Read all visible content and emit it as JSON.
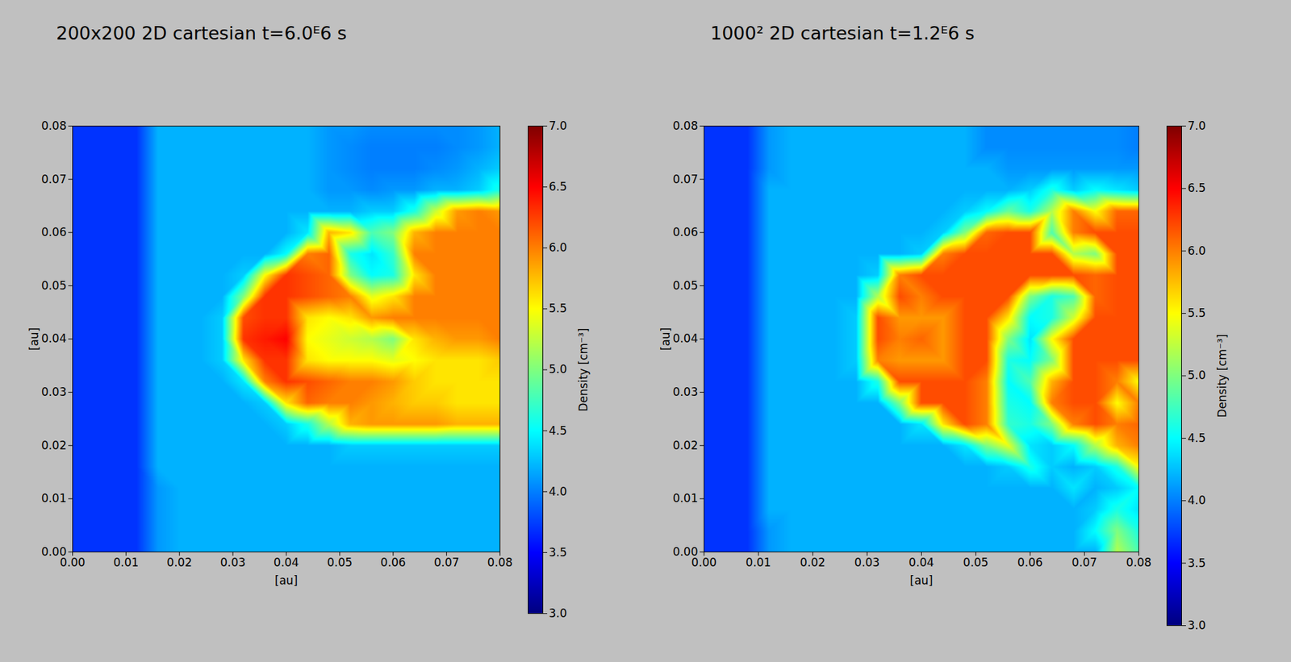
{
  "chart_data": [
    {
      "type": "heatmap",
      "title": "200x200 2D cartesian t=6.0ᴱ6 s",
      "x_label": "[au]",
      "y_label": "[au]",
      "xlim": [
        0,
        0.08
      ],
      "ylim": [
        0,
        0.08
      ],
      "xticks": [
        {
          "value": 0,
          "label": "0.00"
        },
        0.01,
        0.02,
        0.03,
        0.04,
        0.05,
        0.06,
        0.07,
        0.08
      ],
      "yticks": [
        {
          "value": 0,
          "label": "0.00"
        },
        0.01,
        0.02,
        0.03,
        0.04,
        0.05,
        0.06,
        0.07,
        0.08
      ],
      "x": [
        0,
        0.004,
        0.008,
        0.012,
        0.016,
        0.02,
        0.024,
        0.028,
        0.032,
        0.036,
        0.04,
        0.044,
        0.048,
        0.052,
        0.056,
        0.06,
        0.064,
        0.068,
        0.072,
        0.076,
        0.08
      ],
      "y": [
        0.08,
        0.076,
        0.072,
        0.068,
        0.064,
        0.06,
        0.056,
        0.052,
        0.048,
        0.044,
        0.04,
        0.036,
        0.032,
        0.028,
        0.024,
        0.02,
        0.016,
        0.012,
        0.008,
        0.004,
        0
      ],
      "values": [
        [
          3.7,
          3.7,
          3.7,
          3.7,
          4.2,
          4.2,
          4.2,
          4.2,
          4.2,
          4.2,
          4.2,
          4.2,
          4.1,
          4.1,
          4.05,
          4.05,
          4.05,
          4.05,
          4.05,
          4.1,
          4.2
        ],
        [
          3.7,
          3.7,
          3.7,
          3.7,
          4.2,
          4.2,
          4.2,
          4.2,
          4.2,
          4.2,
          4.2,
          4.2,
          4.1,
          4.05,
          4.0,
          4.0,
          4.0,
          4.0,
          4.05,
          4.1,
          4.2
        ],
        [
          3.7,
          3.7,
          3.7,
          3.7,
          4.2,
          4.2,
          4.2,
          4.2,
          4.2,
          4.2,
          4.2,
          4.2,
          4.1,
          4.05,
          4.0,
          4.0,
          4.0,
          4.05,
          4.1,
          4.2,
          4.3
        ],
        [
          3.7,
          3.7,
          3.7,
          3.7,
          4.2,
          4.2,
          4.2,
          4.2,
          4.2,
          4.2,
          4.2,
          4.2,
          4.1,
          4.1,
          4.05,
          4.1,
          4.1,
          4.2,
          4.2,
          4.3,
          4.6
        ],
        [
          3.7,
          3.7,
          3.7,
          3.7,
          4.2,
          4.2,
          4.2,
          4.2,
          4.2,
          4.2,
          4.2,
          4.2,
          4.2,
          4.2,
          4.3,
          4.3,
          4.6,
          5.3,
          5.9,
          6.0,
          5.9
        ],
        [
          3.7,
          3.7,
          3.7,
          3.7,
          4.2,
          4.2,
          4.2,
          4.2,
          4.2,
          4.2,
          4.2,
          4.4,
          5.8,
          5.6,
          4.8,
          5.0,
          5.8,
          6.0,
          6.0,
          6.0,
          6.0
        ],
        [
          3.7,
          3.7,
          3.7,
          3.7,
          4.2,
          4.2,
          4.2,
          4.2,
          4.2,
          4.2,
          4.5,
          6.0,
          6.1,
          4.6,
          4.4,
          4.7,
          6.0,
          6.0,
          6.0,
          6.0,
          6.0
        ],
        [
          3.7,
          3.7,
          3.7,
          3.7,
          4.2,
          4.2,
          4.2,
          4.2,
          4.3,
          5.5,
          6.3,
          6.2,
          6.1,
          5.0,
          4.5,
          4.6,
          5.6,
          6.0,
          6.0,
          6.0,
          6.0
        ],
        [
          3.7,
          3.7,
          3.7,
          3.7,
          4.2,
          4.2,
          4.2,
          4.2,
          5.0,
          6.3,
          6.3,
          6.2,
          6.1,
          6.0,
          5.4,
          5.6,
          6.0,
          6.0,
          6.0,
          6.0,
          6.0
        ],
        [
          3.7,
          3.7,
          3.7,
          3.7,
          4.2,
          4.2,
          4.2,
          4.3,
          6.2,
          6.3,
          6.3,
          5.6,
          5.5,
          5.6,
          5.9,
          6.0,
          6.0,
          6.0,
          6.0,
          6.0,
          6.0
        ],
        [
          3.7,
          3.7,
          3.7,
          3.7,
          4.2,
          4.2,
          4.2,
          4.3,
          6.3,
          6.4,
          6.5,
          5.5,
          5.4,
          5.3,
          5.2,
          5.0,
          5.6,
          5.8,
          5.9,
          5.9,
          6.0
        ],
        [
          3.7,
          3.7,
          3.7,
          3.7,
          4.2,
          4.2,
          4.2,
          4.3,
          5.6,
          6.3,
          6.3,
          5.6,
          5.5,
          5.5,
          5.5,
          5.4,
          5.5,
          5.6,
          5.6,
          5.6,
          5.7
        ],
        [
          3.7,
          3.7,
          3.7,
          3.7,
          4.2,
          4.2,
          4.2,
          4.2,
          4.4,
          6.0,
          6.3,
          6.2,
          6.1,
          6.0,
          6.0,
          5.9,
          5.7,
          5.6,
          5.6,
          5.6,
          5.6
        ],
        [
          3.7,
          3.7,
          3.7,
          3.7,
          4.2,
          4.2,
          4.2,
          4.2,
          4.2,
          4.3,
          5.6,
          6.1,
          6.0,
          6.0,
          5.9,
          5.8,
          5.7,
          5.7,
          5.6,
          5.6,
          5.6
        ],
        [
          3.7,
          3.7,
          3.7,
          3.7,
          4.2,
          4.2,
          4.2,
          4.2,
          4.2,
          4.2,
          4.3,
          4.6,
          5.2,
          5.8,
          5.9,
          5.9,
          5.9,
          5.9,
          5.8,
          5.8,
          5.8
        ],
        [
          3.7,
          3.7,
          3.7,
          3.7,
          4.2,
          4.2,
          4.2,
          4.2,
          4.2,
          4.2,
          4.2,
          4.2,
          4.2,
          4.3,
          4.3,
          4.3,
          4.3,
          4.3,
          4.3,
          4.3,
          4.3
        ],
        [
          3.7,
          3.7,
          3.7,
          3.7,
          4.2,
          4.2,
          4.2,
          4.2,
          4.2,
          4.2,
          4.2,
          4.2,
          4.2,
          4.2,
          4.2,
          4.2,
          4.2,
          4.2,
          4.2,
          4.2,
          4.2
        ],
        [
          3.7,
          3.7,
          3.7,
          3.7,
          4.1,
          4.2,
          4.2,
          4.2,
          4.2,
          4.2,
          4.2,
          4.2,
          4.2,
          4.2,
          4.2,
          4.2,
          4.2,
          4.2,
          4.2,
          4.2,
          4.2
        ],
        [
          3.7,
          3.7,
          3.7,
          3.7,
          4.1,
          4.2,
          4.2,
          4.2,
          4.2,
          4.2,
          4.2,
          4.2,
          4.2,
          4.2,
          4.2,
          4.2,
          4.2,
          4.2,
          4.2,
          4.2,
          4.2
        ],
        [
          3.7,
          3.7,
          3.7,
          3.7,
          4.1,
          4.2,
          4.2,
          4.2,
          4.2,
          4.2,
          4.2,
          4.2,
          4.2,
          4.2,
          4.2,
          4.2,
          4.2,
          4.2,
          4.2,
          4.2,
          4.2
        ],
        [
          3.7,
          3.7,
          3.7,
          3.7,
          4.1,
          4.2,
          4.2,
          4.2,
          4.2,
          4.2,
          4.2,
          4.2,
          4.2,
          4.2,
          4.2,
          4.2,
          4.2,
          4.2,
          4.2,
          4.2,
          4.2
        ]
      ],
      "colorbar": {
        "label": "Density [cm⁻³]",
        "range": [
          3,
          7
        ],
        "ticks": [
          {
            "value": 3,
            "label": "3.0"
          },
          3.5,
          {
            "value": 4,
            "label": "4.0"
          },
          4.5,
          {
            "value": 5,
            "label": "5.0"
          },
          5.5,
          {
            "value": 6,
            "label": "6.0"
          },
          6.5,
          {
            "value": 7,
            "label": "7.0"
          }
        ]
      }
    },
    {
      "type": "heatmap",
      "title": "1000² 2D cartesian t=1.2ᴱ6 s",
      "x_label": "[au]",
      "y_label": "[au]",
      "xlim": [
        0,
        0.08
      ],
      "ylim": [
        0,
        0.08
      ],
      "xticks": [
        {
          "value": 0,
          "label": "0.00"
        },
        0.01,
        0.02,
        0.03,
        0.04,
        0.05,
        0.06,
        0.07,
        0.08
      ],
      "yticks": [
        {
          "value": 0,
          "label": "0.00"
        },
        0.01,
        0.02,
        0.03,
        0.04,
        0.05,
        0.06,
        0.07,
        0.08
      ],
      "x": [
        0,
        0.004,
        0.008,
        0.012,
        0.016,
        0.02,
        0.024,
        0.028,
        0.032,
        0.036,
        0.04,
        0.044,
        0.048,
        0.052,
        0.056,
        0.06,
        0.064,
        0.068,
        0.072,
        0.076,
        0.08
      ],
      "y": [
        0.08,
        0.076,
        0.072,
        0.068,
        0.064,
        0.06,
        0.056,
        0.052,
        0.048,
        0.044,
        0.04,
        0.036,
        0.032,
        0.028,
        0.024,
        0.02,
        0.016,
        0.012,
        0.008,
        0.004,
        0
      ],
      "values": [
        [
          3.7,
          3.7,
          3.7,
          4.1,
          4.2,
          4.2,
          4.2,
          4.2,
          4.2,
          4.2,
          4.2,
          4.2,
          4.2,
          4.05,
          4.05,
          4.05,
          4.05,
          4.05,
          4.05,
          4.05,
          4.0
        ],
        [
          3.7,
          3.7,
          3.7,
          4.1,
          4.2,
          4.2,
          4.2,
          4.2,
          4.2,
          4.2,
          4.2,
          4.2,
          4.2,
          4.05,
          4.05,
          4.05,
          4.05,
          4.05,
          4.05,
          4.05,
          4.0
        ],
        [
          3.7,
          3.7,
          3.7,
          4.1,
          4.2,
          4.2,
          4.2,
          4.2,
          4.2,
          4.2,
          4.2,
          4.2,
          4.2,
          4.2,
          4.1,
          4.1,
          4.1,
          4.1,
          4.1,
          4.1,
          4.1
        ],
        [
          3.7,
          3.7,
          3.7,
          4.2,
          4.2,
          4.2,
          4.2,
          4.2,
          4.2,
          4.2,
          4.2,
          4.2,
          4.2,
          4.2,
          4.2,
          4.3,
          4.6,
          4.3,
          4.5,
          4.4,
          4.3
        ],
        [
          3.7,
          3.7,
          3.7,
          4.2,
          4.2,
          4.2,
          4.2,
          4.2,
          4.2,
          4.2,
          4.2,
          4.2,
          4.3,
          4.5,
          4.9,
          4.6,
          5.2,
          6.0,
          5.5,
          6.1,
          6.1
        ],
        [
          3.7,
          3.7,
          3.7,
          4.2,
          4.2,
          4.2,
          4.2,
          4.2,
          4.2,
          4.2,
          4.2,
          4.3,
          5.0,
          6.1,
          6.2,
          6.2,
          4.8,
          6.0,
          6.2,
          6.2,
          6.2
        ],
        [
          3.7,
          3.7,
          3.7,
          4.2,
          4.2,
          4.2,
          4.2,
          4.2,
          4.2,
          4.2,
          4.3,
          6.0,
          6.2,
          6.2,
          6.2,
          6.2,
          6.2,
          5.2,
          5.0,
          6.2,
          6.2
        ],
        [
          3.7,
          3.7,
          3.7,
          4.2,
          4.2,
          4.2,
          4.2,
          4.2,
          4.3,
          6.0,
          6.2,
          6.2,
          6.2,
          6.2,
          6.2,
          6.2,
          6.2,
          6.2,
          6.1,
          6.2,
          6.2
        ],
        [
          3.7,
          3.7,
          3.7,
          4.2,
          4.2,
          4.2,
          4.2,
          4.2,
          5.2,
          6.2,
          6.0,
          6.2,
          6.2,
          6.2,
          6.2,
          5.0,
          4.6,
          4.8,
          6.1,
          6.2,
          6.2
        ],
        [
          3.7,
          3.7,
          3.7,
          4.2,
          4.2,
          4.2,
          4.2,
          4.3,
          6.2,
          5.9,
          5.9,
          5.9,
          6.2,
          6.2,
          5.6,
          4.5,
          4.6,
          5.3,
          6.2,
          6.2,
          6.2
        ],
        [
          3.7,
          3.7,
          3.7,
          4.2,
          4.2,
          4.2,
          4.2,
          4.3,
          6.2,
          6.0,
          6.1,
          5.9,
          6.2,
          6.2,
          5.0,
          4.4,
          5.5,
          6.2,
          6.2,
          6.2,
          6.2
        ],
        [
          3.7,
          3.7,
          3.7,
          4.2,
          4.2,
          4.2,
          4.2,
          4.3,
          6.0,
          5.9,
          5.9,
          5.9,
          6.2,
          6.2,
          4.6,
          4.5,
          5.0,
          6.2,
          6.2,
          6.2,
          6.2
        ],
        [
          3.7,
          3.7,
          3.7,
          4.2,
          4.2,
          4.2,
          4.2,
          4.2,
          4.6,
          6.2,
          6.2,
          6.2,
          6.2,
          6.0,
          4.5,
          4.8,
          5.8,
          6.2,
          6.2,
          6.0,
          5.5
        ],
        [
          3.7,
          3.7,
          3.7,
          4.2,
          4.2,
          4.2,
          4.2,
          4.2,
          4.2,
          5.0,
          6.2,
          6.2,
          6.2,
          6.0,
          4.6,
          4.5,
          6.0,
          6.2,
          6.2,
          5.5,
          6.0
        ],
        [
          3.7,
          3.7,
          3.7,
          4.2,
          4.2,
          4.2,
          4.2,
          4.2,
          4.2,
          4.2,
          4.4,
          5.6,
          6.2,
          6.0,
          4.7,
          4.6,
          5.0,
          6.0,
          6.2,
          6.0,
          6.1
        ],
        [
          3.7,
          3.7,
          3.7,
          4.2,
          4.2,
          4.2,
          4.2,
          4.2,
          4.2,
          4.2,
          4.2,
          4.2,
          4.4,
          5.0,
          5.4,
          4.4,
          4.3,
          4.5,
          5.2,
          5.8,
          6.0
        ],
        [
          3.7,
          3.7,
          3.7,
          4.2,
          4.2,
          4.2,
          4.2,
          4.2,
          4.2,
          4.2,
          4.2,
          4.2,
          4.2,
          4.2,
          4.3,
          4.6,
          4.3,
          4.2,
          4.3,
          4.6,
          5.5
        ],
        [
          3.7,
          3.7,
          3.7,
          4.2,
          4.2,
          4.2,
          4.2,
          4.2,
          4.2,
          4.2,
          4.2,
          4.2,
          4.2,
          4.2,
          4.2,
          4.2,
          4.2,
          4.4,
          4.2,
          4.3,
          4.5
        ],
        [
          3.7,
          3.7,
          3.7,
          4.2,
          4.2,
          4.2,
          4.2,
          4.2,
          4.2,
          4.2,
          4.2,
          4.2,
          4.2,
          4.2,
          4.2,
          4.2,
          4.2,
          4.2,
          4.3,
          4.6,
          4.4
        ],
        [
          3.7,
          3.7,
          3.7,
          4.1,
          4.2,
          4.2,
          4.2,
          4.2,
          4.2,
          4.2,
          4.2,
          4.2,
          4.2,
          4.2,
          4.2,
          4.2,
          4.2,
          4.2,
          4.5,
          5.0,
          4.6
        ],
        [
          3.7,
          3.7,
          3.7,
          4.1,
          4.2,
          4.2,
          4.2,
          4.2,
          4.2,
          4.2,
          4.2,
          4.2,
          4.2,
          4.2,
          4.2,
          4.2,
          4.2,
          4.2,
          4.2,
          5.2,
          4.8
        ]
      ],
      "colorbar": {
        "label": "Density [cm⁻³]",
        "range": [
          3,
          7
        ],
        "ticks": [
          {
            "value": 3,
            "label": "3.0"
          },
          3.5,
          {
            "value": 4,
            "label": "4.0"
          },
          4.5,
          {
            "value": 5,
            "label": "5.0"
          },
          5.5,
          {
            "value": 6,
            "label": "6.0"
          },
          6.5,
          {
            "value": 7,
            "label": "7.0"
          }
        ]
      }
    }
  ]
}
